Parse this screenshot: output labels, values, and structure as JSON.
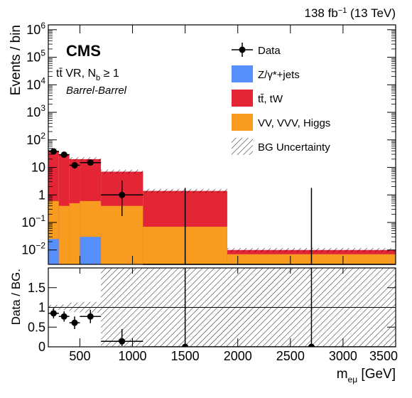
{
  "header": {
    "lumi_label": "138 fb",
    "lumi_sup": "−1",
    "energy_label": " (13 TeV)"
  },
  "labels": {
    "experiment": "CMS",
    "region_prefix": "tt̄ VR, N",
    "region_sub": "b",
    "region_suffix": " ≥ 1",
    "category": "Barrel-Barrel"
  },
  "colors": {
    "dy": "#5790fc",
    "ttbar": "#e42536",
    "vv": "#f89c20",
    "data": "#000000"
  },
  "legend": {
    "placement": "top-right",
    "entries": [
      {
        "key": "data",
        "label": "Data",
        "symbol": "marker"
      },
      {
        "key": "dy",
        "label": "Z/γ*+jets",
        "symbol": "fill"
      },
      {
        "key": "ttbar",
        "label": "tt̄, tW",
        "symbol": "fill"
      },
      {
        "key": "vv",
        "label": "VV, VVV, Higgs",
        "symbol": "fill"
      },
      {
        "key": "unc",
        "label": "BG Uncertainty",
        "symbol": "hatch"
      }
    ]
  },
  "chart_data": [
    {
      "type": "bar",
      "subtype": "stacked-histogram",
      "ylabel": "Events / bin",
      "yscale": "log",
      "ylim": [
        0.003,
        1500000
      ],
      "xlim": [
        200,
        3500
      ],
      "y_ticks": [
        {
          "v": 0.01,
          "base": "10",
          "exp": "−2"
        },
        {
          "v": 0.1,
          "base": "10",
          "exp": "−1"
        },
        {
          "v": 1,
          "label": "1"
        },
        {
          "v": 10,
          "label": "10"
        },
        {
          "v": 100,
          "base": "10",
          "exp": "2"
        },
        {
          "v": 1000,
          "base": "10",
          "exp": "3"
        },
        {
          "v": 10000,
          "base": "10",
          "exp": "4"
        },
        {
          "v": 100000,
          "base": "10",
          "exp": "5"
        },
        {
          "v": 1000000,
          "base": "10",
          "exp": "6"
        }
      ],
      "bins": [
        {
          "lo": 200,
          "hi": 300,
          "vv": 0.6,
          "dy": 0.025,
          "total": 40
        },
        {
          "lo": 300,
          "hi": 400,
          "vv": 0.4,
          "dy": 0.003,
          "total": 30
        },
        {
          "lo": 400,
          "hi": 500,
          "vv": 0.5,
          "dy": 0.003,
          "total": 20
        },
        {
          "lo": 500,
          "hi": 700,
          "vv": 0.6,
          "dy": 0.03,
          "total": 20
        },
        {
          "lo": 700,
          "hi": 1100,
          "vv": 0.4,
          "dy": 0.003,
          "total": 7
        },
        {
          "lo": 1100,
          "hi": 1900,
          "vv": 0.07,
          "dy": 0.003,
          "total": 1.4
        },
        {
          "lo": 1900,
          "hi": 3500,
          "vv": 0.007,
          "dy": 0.003,
          "total": 0.01
        }
      ],
      "data_points": [
        {
          "x": 250,
          "y": 38,
          "xlo": 200,
          "xhi": 300,
          "ylo": 32,
          "yhi": 45
        },
        {
          "x": 350,
          "y": 29,
          "xlo": 300,
          "xhi": 400,
          "ylo": 24,
          "yhi": 35
        },
        {
          "x": 450,
          "y": 12,
          "xlo": 400,
          "xhi": 500,
          "ylo": 9,
          "yhi": 15
        },
        {
          "x": 600,
          "y": 15,
          "xlo": 500,
          "xhi": 700,
          "ylo": 12,
          "yhi": 19
        },
        {
          "x": 900,
          "y": 1,
          "xlo": 700,
          "xhi": 1100,
          "ylo": 0.17,
          "yhi": 3.3
        },
        {
          "x": 1500,
          "y": 0,
          "xlo": 1100,
          "xhi": 1900,
          "ylo": 0,
          "yhi": 1.8
        },
        {
          "x": 2700,
          "y": 0,
          "xlo": 1900,
          "xhi": 3500,
          "ylo": 0,
          "yhi": 1.8
        }
      ]
    },
    {
      "type": "scatter",
      "subtype": "ratio",
      "ylabel": "Data / BG.",
      "xlabel": "m",
      "xlabel_sub": "eμ",
      "xlabel_unit": " [GeV]",
      "ylim": [
        0,
        2
      ],
      "xlim": [
        200,
        3500
      ],
      "reference_line": 1,
      "x_ticks": [
        {
          "v": 500,
          "label": "500"
        },
        {
          "v": 1000,
          "label": "1000"
        },
        {
          "v": 1500,
          "label": "1500"
        },
        {
          "v": 2000,
          "label": "2000"
        },
        {
          "v": 2500,
          "label": "2500"
        },
        {
          "v": 3000,
          "label": "3000"
        },
        {
          "v": 3500,
          "label": "3500"
        }
      ],
      "y_ticks": [
        {
          "v": 0,
          "label": "0"
        },
        {
          "v": 0.5,
          "label": "0.5"
        },
        {
          "v": 1,
          "label": "1"
        },
        {
          "v": 1.5,
          "label": "1.5"
        }
      ],
      "uncertainty_band": [
        {
          "lo": 200,
          "hi": 300,
          "down": 0.94,
          "up": 1.06
        },
        {
          "lo": 300,
          "hi": 400,
          "down": 0.93,
          "up": 1.07
        },
        {
          "lo": 400,
          "hi": 500,
          "down": 0.88,
          "up": 1.12
        },
        {
          "lo": 500,
          "hi": 700,
          "down": 0.86,
          "up": 1.14
        },
        {
          "lo": 700,
          "hi": 3500,
          "down": 0,
          "up": 2
        }
      ],
      "points": [
        {
          "x": 250,
          "y": 0.85,
          "xlo": 200,
          "xhi": 300,
          "ylo": 0.72,
          "yhi": 0.98
        },
        {
          "x": 350,
          "y": 0.77,
          "xlo": 300,
          "xhi": 400,
          "ylo": 0.64,
          "yhi": 0.9
        },
        {
          "x": 450,
          "y": 0.61,
          "xlo": 400,
          "xhi": 500,
          "ylo": 0.45,
          "yhi": 0.77
        },
        {
          "x": 600,
          "y": 0.77,
          "xlo": 500,
          "xhi": 700,
          "ylo": 0.6,
          "yhi": 0.94
        },
        {
          "x": 900,
          "y": 0.14,
          "xlo": 700,
          "xhi": 1100,
          "ylo": 0.02,
          "yhi": 0.45
        },
        {
          "x": 1500,
          "y": 0,
          "xlo": 1100,
          "xhi": 1900,
          "ylo": 0,
          "yhi": 2
        },
        {
          "x": 2700,
          "y": 0,
          "xlo": 1900,
          "xhi": 3500,
          "ylo": 0,
          "yhi": 2
        }
      ]
    }
  ]
}
